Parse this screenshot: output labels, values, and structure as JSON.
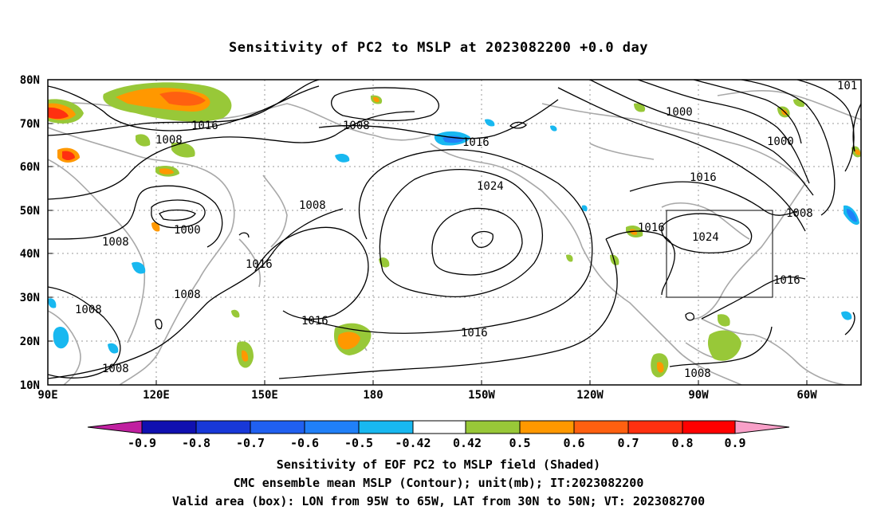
{
  "title": "Sensitivity of PC2 to MSLP at 2023082200 +0.0 day",
  "map": {
    "lon_labels": [
      "90E",
      "120E",
      "150E",
      "180",
      "150W",
      "120W",
      "90W",
      "60W"
    ],
    "lat_labels": [
      "80N",
      "70N",
      "60N",
      "50N",
      "40N",
      "30N",
      "20N",
      "10N"
    ],
    "contour_labels": [
      "1016",
      "1008",
      "1008",
      "1000",
      "1008",
      "1008",
      "1008",
      "1008",
      "1016",
      "1008",
      "1016",
      "1024",
      "1016",
      "1016",
      "1008",
      "1016",
      "1000",
      "1000",
      "1016",
      "1024",
      "1008",
      "1016",
      "1016",
      "1008",
      "101"
    ],
    "valid_box": {
      "lon_min": -95,
      "lon_max": -65,
      "lat_min": 30,
      "lat_max": 50
    },
    "colors": {
      "contour": "#000000",
      "coast": "#a8a8a8",
      "grid": "#9a9a9a"
    }
  },
  "colorbar": {
    "labels": [
      "-0.9",
      "-0.8",
      "-0.7",
      "-0.6",
      "-0.5",
      "-0.42",
      "0.42",
      "0.5",
      "0.6",
      "0.7",
      "0.8",
      "0.9"
    ],
    "colors": [
      "#c020a0",
      "#1010b0",
      "#1838d8",
      "#2060f0",
      "#2080f8",
      "#18b8f0",
      "#ffffff",
      "#98c838",
      "#ff9800",
      "#ff6010",
      "#ff3010",
      "#ff0000",
      "#f8a0c8"
    ]
  },
  "captions": [
    "Sensitivity of EOF PC2 to MSLP field (Shaded)",
    "CMC ensemble mean MSLP (Contour); unit(mb); IT:2023082200",
    "Valid area (box): LON from 95W to 65W, LAT from 30N to 50N; VT: 2023082700"
  ]
}
